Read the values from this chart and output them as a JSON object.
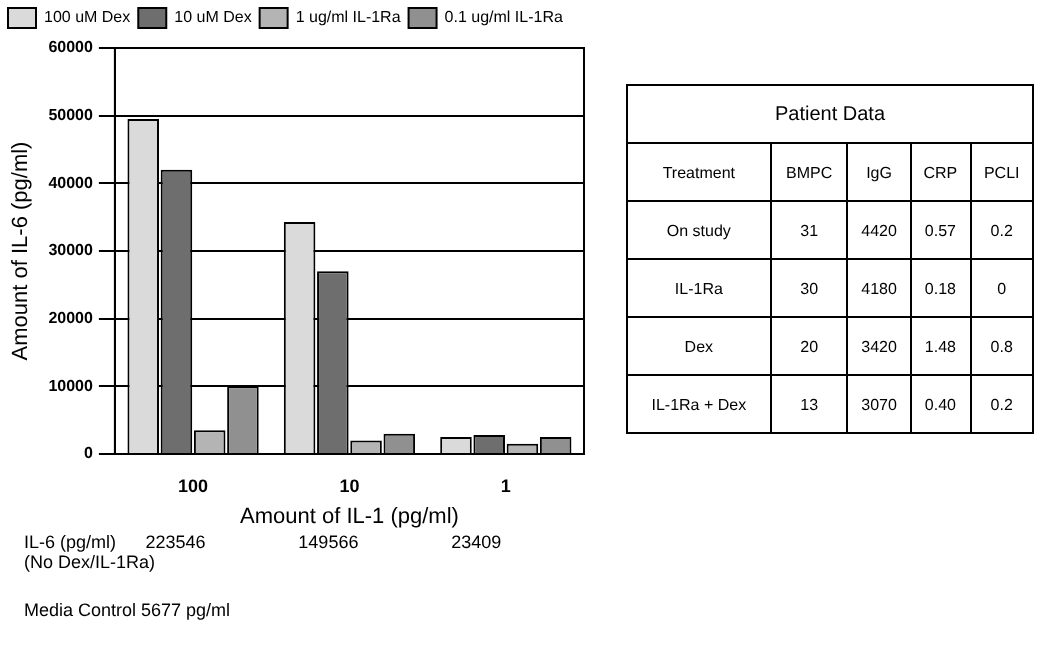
{
  "chart_data": [
    {
      "type": "bar",
      "xlabel": "Amount of IL-1 (pg/ml)",
      "ylabel": "Amount of IL-6 (pg/ml)",
      "categories": [
        "100",
        "10",
        "1"
      ],
      "series": [
        {
          "name": "100 uM Dex",
          "color": "#dadada",
          "values": [
            49500,
            34300,
            2500
          ]
        },
        {
          "name": "10 uM Dex",
          "color": "#6e6e6e",
          "values": [
            42000,
            27000,
            2800
          ]
        },
        {
          "name": "1 ug/ml IL-1Ra",
          "color": "#b4b4b4",
          "values": [
            3500,
            2000,
            1500
          ]
        },
        {
          "name": "0.1 ug/ml IL-1Ra",
          "color": "#909090",
          "values": [
            10000,
            3000,
            2500
          ]
        }
      ],
      "ylim": [
        0,
        60000
      ],
      "yticks": [
        0,
        10000,
        20000,
        30000,
        40000,
        50000,
        60000
      ],
      "grid": "y",
      "legend": "top",
      "annotations": [
        "IL-6 (pg/ml)",
        "223546",
        "149566",
        "23409",
        "(No Dex/IL-1Ra)",
        "Media Control 5677 pg/ml"
      ]
    },
    {
      "type": "other",
      "title": "Patient Data",
      "annotations": [
        "Treatment",
        "BMPC",
        "IgG",
        "CRP",
        "PCLI",
        "On study",
        "31",
        "4420",
        "0.57",
        "0.2",
        "IL-1Ra",
        "30",
        "4180",
        "0.18",
        "0",
        "Dex",
        "20",
        "3420",
        "1.48",
        "0.8",
        "IL-1Ra + Dex",
        "13",
        "3070",
        "0.40",
        "0.2"
      ]
    }
  ]
}
